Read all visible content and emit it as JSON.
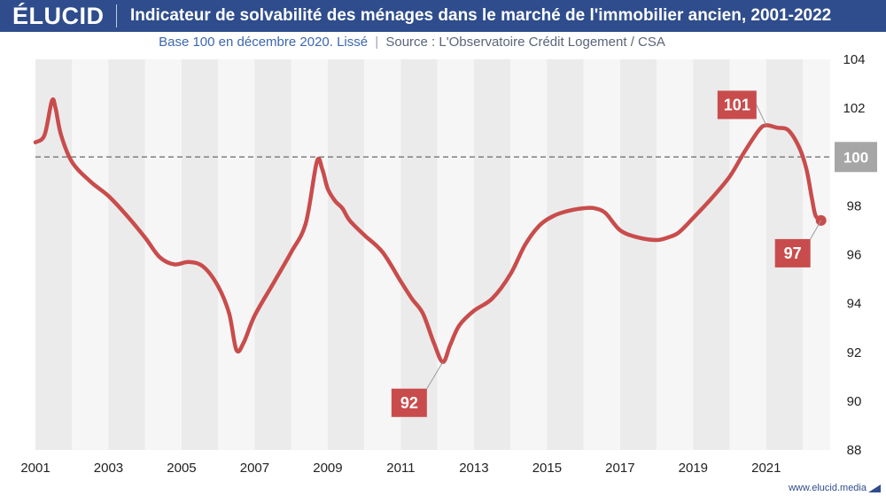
{
  "header": {
    "logo": "ÉLUCID",
    "title": "Indicateur de solvabilité des ménages dans le marché de l'immobilier ancien, 2001-2022"
  },
  "subtitle": {
    "base": "Base 100 en décembre 2020. Lissé",
    "separator": "|",
    "source": "Source :  L'Observatoire Crédit Logement / CSA"
  },
  "footer": {
    "url": "www.elucid.media"
  },
  "colors": {
    "header_bg": "#2f4d8c",
    "line": "#c94c4c",
    "label_bg": "#c94c4c",
    "reference_label_bg": "#a6a6a6",
    "band_dark": "#ebebeb",
    "band_light": "#f6f6f6"
  },
  "chart_data": {
    "type": "line",
    "title": "Indicateur de solvabilité des ménages dans le marché de l'immobilier ancien, 2001-2022",
    "xlabel": "",
    "ylabel": "",
    "xlim": [
      2001,
      2022.5
    ],
    "ylim": [
      88,
      104
    ],
    "x_ticks": [
      "2001",
      "2003",
      "2005",
      "2007",
      "2009",
      "2011",
      "2013",
      "2015",
      "2017",
      "2019",
      "2021"
    ],
    "y_ticks": [
      "88",
      "90",
      "92",
      "94",
      "96",
      "98",
      "100",
      "102",
      "104"
    ],
    "reference_line": {
      "value": 100,
      "label": "100",
      "style": "dashed"
    },
    "series": [
      {
        "name": "Indicateur de solvabilité",
        "x": [
          2001.0,
          2001.25,
          2001.45,
          2001.55,
          2001.7,
          2002.0,
          2002.5,
          2003.0,
          2003.5,
          2004.0,
          2004.4,
          2004.8,
          2005.2,
          2005.6,
          2006.0,
          2006.3,
          2006.5,
          2006.7,
          2007.0,
          2007.5,
          2008.0,
          2008.4,
          2008.7,
          2008.85,
          2009.0,
          2009.2,
          2009.4,
          2009.6,
          2010.0,
          2010.5,
          2011.0,
          2011.3,
          2011.6,
          2011.9,
          2012.15,
          2012.35,
          2012.6,
          2013.0,
          2013.5,
          2014.0,
          2014.4,
          2014.8,
          2015.2,
          2015.6,
          2016.0,
          2016.3,
          2016.6,
          2017.0,
          2017.5,
          2018.0,
          2018.3,
          2018.6,
          2019.0,
          2019.5,
          2020.0,
          2020.4,
          2020.8,
          2021.0,
          2021.3,
          2021.6,
          2021.9,
          2022.1,
          2022.25,
          2022.35,
          2022.5
        ],
        "values": [
          100.6,
          100.9,
          102.3,
          102.0,
          100.9,
          99.8,
          99.0,
          98.4,
          97.6,
          96.7,
          95.9,
          95.6,
          95.7,
          95.5,
          94.7,
          93.6,
          92.1,
          92.4,
          93.5,
          94.8,
          96.1,
          97.3,
          99.8,
          99.5,
          98.7,
          98.2,
          97.9,
          97.4,
          96.8,
          96.1,
          94.9,
          94.2,
          93.6,
          92.4,
          91.6,
          92.3,
          93.1,
          93.7,
          94.2,
          95.2,
          96.4,
          97.2,
          97.6,
          97.8,
          97.9,
          97.9,
          97.7,
          97.0,
          96.7,
          96.6,
          96.7,
          96.9,
          97.5,
          98.3,
          99.2,
          100.2,
          101.1,
          101.3,
          101.2,
          101.1,
          100.4,
          99.5,
          98.3,
          97.6,
          97.4
        ]
      }
    ],
    "annotations": [
      {
        "text": "101",
        "x": 2021.0,
        "y": 101.3
      },
      {
        "text": "92",
        "x": 2012.15,
        "y": 91.6
      },
      {
        "text": "97",
        "x": 2022.5,
        "y": 97.4
      }
    ]
  }
}
